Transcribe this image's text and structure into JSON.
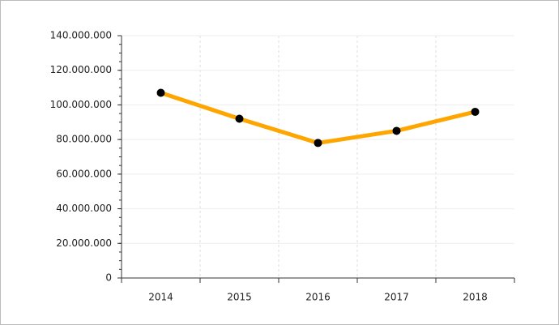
{
  "chart_data": {
    "type": "line",
    "categories": [
      "2014",
      "2015",
      "2016",
      "2017",
      "2018"
    ],
    "series": [
      {
        "color": "#ffa500",
        "values": [
          107000000,
          92000000,
          78000000,
          85000000,
          96000000
        ]
      }
    ],
    "ylim": [
      0,
      140000000
    ],
    "yticks": [
      0,
      {
        "value": 20000000,
        "label": "20.000.000"
      },
      {
        "value": 40000000,
        "label": "40.000.000"
      },
      {
        "value": 60000000,
        "label": "60.000.000"
      },
      {
        "value": 80000000,
        "label": "80.000.000"
      },
      {
        "value": 100000000,
        "label": "100.000.000"
      },
      {
        "value": 120000000,
        "label": "120.000.000"
      },
      {
        "value": 140000000,
        "label": "140.000.000"
      }
    ],
    "grid": true
  }
}
